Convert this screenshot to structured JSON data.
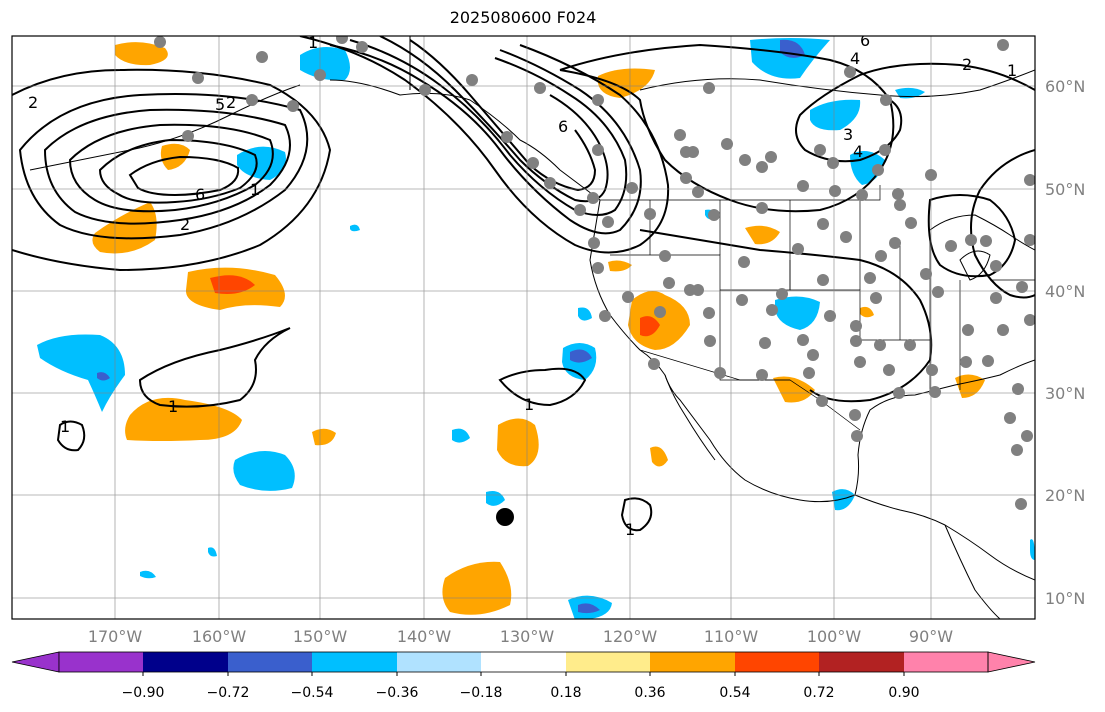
{
  "title": "2025080600 F024",
  "map": {
    "lon_labels": [
      "170°W",
      "160°W",
      "150°W",
      "140°W",
      "130°W",
      "120°W",
      "110°W",
      "100°W",
      "90°W"
    ],
    "lat_labels": [
      "60°N",
      "50°N",
      "40°N",
      "30°N",
      "20°N",
      "10°N"
    ],
    "contour_labels": [
      "2",
      "2",
      "1",
      "6",
      "5",
      "1",
      "2",
      "1",
      "1",
      "1",
      "1",
      "6",
      "4",
      "2",
      "1",
      "3",
      "4",
      "6"
    ],
    "grid": true,
    "colors": {
      "negative_strong": "#9932cc",
      "negative_1": "#00008b",
      "negative_2": "#3a5fcd",
      "negative_3": "#00bfff",
      "negative_4": "#b0e2ff",
      "neutral": "#ffffff",
      "positive_1": "#ffec8b",
      "positive_2": "#ffa500",
      "positive_3": "#ff4500",
      "positive_4": "#b22222",
      "positive_strong": "#ff82ab",
      "station_dot": "#808080",
      "marker": "#000000"
    }
  },
  "colorbar": {
    "ticks": [
      "−0.90",
      "−0.72",
      "−0.54",
      "−0.36",
      "−0.18",
      "0.18",
      "0.36",
      "0.54",
      "0.72",
      "0.90"
    ],
    "colors": [
      "#00008b",
      "#3a5fcd",
      "#00bfff",
      "#b0e2ff",
      "#ffffff",
      "#ffec8b",
      "#ffa500",
      "#ff4500",
      "#b22222"
    ],
    "extend_min_color": "#9932cc",
    "extend_max_color": "#ff82ab"
  }
}
